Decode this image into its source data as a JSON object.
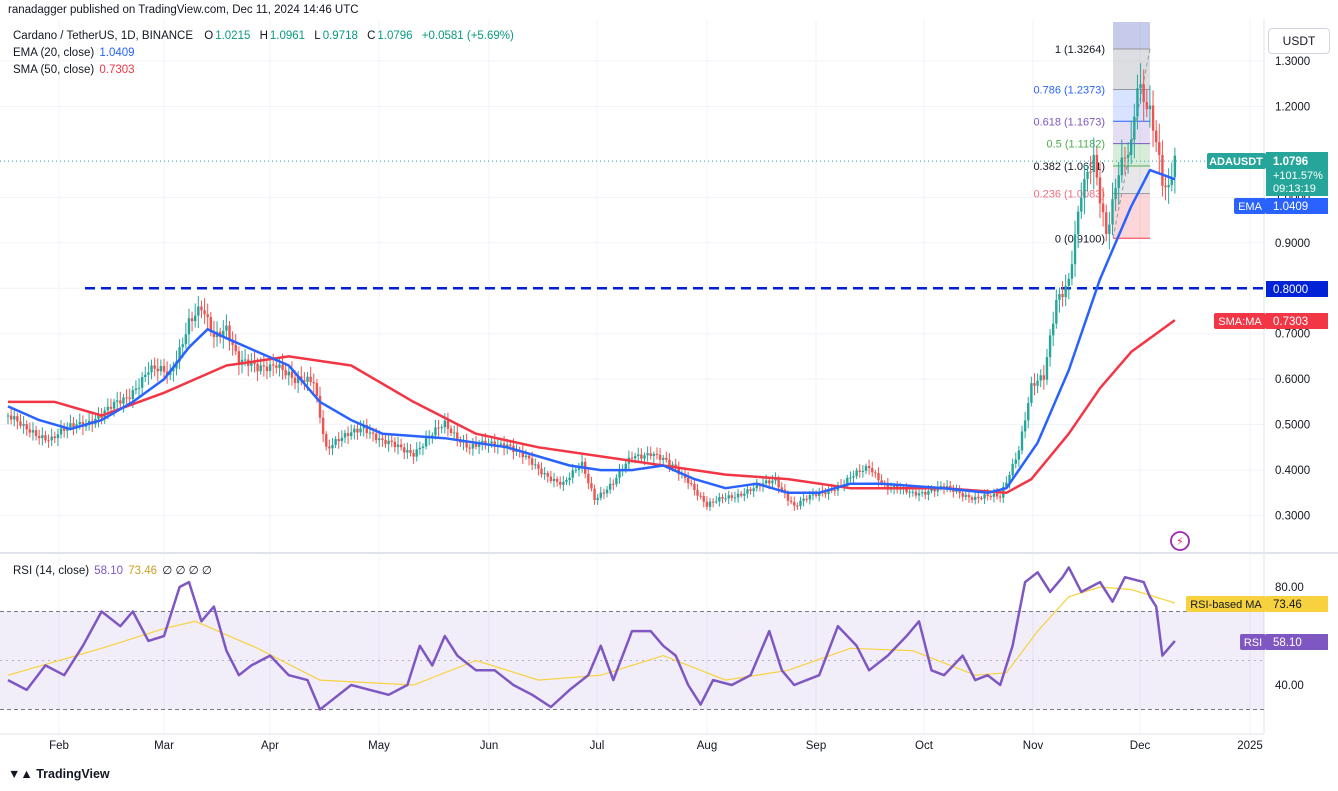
{
  "header": {
    "published": "ranadagger published on TradingView.com, Dec 11, 2024 14:46 UTC"
  },
  "legend": {
    "symbol": "Cardano / TetherUS, 1D, BINANCE",
    "o_label": "O",
    "o_value": "1.0215",
    "h_label": "H",
    "h_value": "1.0961",
    "l_label": "L",
    "l_value": "0.9718",
    "c_label": "C",
    "c_value": "1.0796",
    "change": "+0.0581 (+5.69%)",
    "ema_label": "EMA (20, close)",
    "ema_value": "1.0409",
    "sma_label": "SMA (50, close)",
    "sma_value": "0.7303"
  },
  "rsi_legend": {
    "label": "RSI (14, close)",
    "value1": "58.10",
    "value2": "73.46",
    "extra": "∅ ∅ ∅ ∅"
  },
  "currency_button": "USDT",
  "footer": {
    "logo_text": "TradingView"
  },
  "colors": {
    "up": "#26a69a",
    "down": "#ef5350",
    "ema": "#2962ff",
    "sma": "#f23645",
    "rsi": "#7e57c2",
    "rsi_ma": "#f7d23e",
    "support": "#0022d6"
  },
  "chart_data": [
    {
      "type": "candlestick",
      "title": "Cardano / TetherUS, 1D, BINANCE",
      "x_ticks": [
        "Feb",
        "Mar",
        "Apr",
        "May",
        "Jun",
        "Jul",
        "Aug",
        "Sep",
        "Oct",
        "Nov",
        "Dec",
        "2025"
      ],
      "y_ticks": [
        "0.3000",
        "0.4000",
        "0.5000",
        "0.6000",
        "0.7000",
        "0.8000",
        "0.9000",
        "1.0000",
        "1.2000",
        "1.3000"
      ],
      "ylim": [
        0.22,
        1.4
      ],
      "price_path": [
        [
          0,
          0.52
        ],
        [
          5,
          0.49
        ],
        [
          14,
          0.47
        ],
        [
          22,
          0.5
        ],
        [
          30,
          0.52
        ],
        [
          38,
          0.56
        ],
        [
          45,
          0.62
        ],
        [
          52,
          0.61
        ],
        [
          58,
          0.73
        ],
        [
          62,
          0.75
        ],
        [
          66,
          0.69
        ],
        [
          70,
          0.72
        ],
        [
          74,
          0.64
        ],
        [
          80,
          0.62
        ],
        [
          86,
          0.64
        ],
        [
          92,
          0.59
        ],
        [
          98,
          0.6
        ],
        [
          102,
          0.45
        ],
        [
          108,
          0.47
        ],
        [
          114,
          0.5
        ],
        [
          120,
          0.46
        ],
        [
          130,
          0.44
        ],
        [
          140,
          0.5
        ],
        [
          148,
          0.45
        ],
        [
          160,
          0.46
        ],
        [
          170,
          0.4
        ],
        [
          178,
          0.37
        ],
        [
          184,
          0.41
        ],
        [
          188,
          0.34
        ],
        [
          194,
          0.37
        ],
        [
          200,
          0.43
        ],
        [
          206,
          0.44
        ],
        [
          212,
          0.41
        ],
        [
          218,
          0.38
        ],
        [
          224,
          0.32
        ],
        [
          230,
          0.34
        ],
        [
          240,
          0.36
        ],
        [
          246,
          0.38
        ],
        [
          252,
          0.32
        ],
        [
          260,
          0.35
        ],
        [
          268,
          0.37
        ],
        [
          276,
          0.41
        ],
        [
          282,
          0.36
        ],
        [
          290,
          0.35
        ],
        [
          300,
          0.36
        ],
        [
          310,
          0.34
        ],
        [
          318,
          0.34
        ],
        [
          324,
          0.45
        ],
        [
          328,
          0.58
        ],
        [
          332,
          0.6
        ],
        [
          336,
          0.78
        ],
        [
          340,
          0.82
        ],
        [
          344,
          1.0
        ],
        [
          348,
          1.08
        ],
        [
          352,
          0.93
        ],
        [
          356,
          1.06
        ],
        [
          360,
          1.1
        ],
        [
          362,
          1.24
        ],
        [
          366,
          1.2
        ],
        [
          368,
          1.14
        ],
        [
          370,
          1.04
        ],
        [
          372,
          1.01
        ],
        [
          374,
          1.08
        ]
      ],
      "ema_path": [
        [
          0,
          0.54
        ],
        [
          10,
          0.51
        ],
        [
          20,
          0.49
        ],
        [
          30,
          0.51
        ],
        [
          40,
          0.55
        ],
        [
          50,
          0.6
        ],
        [
          58,
          0.67
        ],
        [
          64,
          0.71
        ],
        [
          70,
          0.69
        ],
        [
          80,
          0.66
        ],
        [
          90,
          0.63
        ],
        [
          100,
          0.55
        ],
        [
          110,
          0.51
        ],
        [
          120,
          0.48
        ],
        [
          140,
          0.47
        ],
        [
          160,
          0.45
        ],
        [
          180,
          0.41
        ],
        [
          190,
          0.4
        ],
        [
          200,
          0.4
        ],
        [
          210,
          0.41
        ],
        [
          220,
          0.38
        ],
        [
          230,
          0.36
        ],
        [
          240,
          0.37
        ],
        [
          250,
          0.35
        ],
        [
          260,
          0.35
        ],
        [
          270,
          0.37
        ],
        [
          280,
          0.37
        ],
        [
          300,
          0.36
        ],
        [
          314,
          0.35
        ],
        [
          320,
          0.36
        ],
        [
          330,
          0.46
        ],
        [
          340,
          0.62
        ],
        [
          350,
          0.82
        ],
        [
          360,
          0.98
        ],
        [
          366,
          1.06
        ],
        [
          374,
          1.04
        ]
      ],
      "sma_path": [
        [
          0,
          0.55
        ],
        [
          15,
          0.55
        ],
        [
          30,
          0.52
        ],
        [
          50,
          0.57
        ],
        [
          70,
          0.63
        ],
        [
          90,
          0.65
        ],
        [
          110,
          0.63
        ],
        [
          130,
          0.55
        ],
        [
          150,
          0.48
        ],
        [
          170,
          0.45
        ],
        [
          190,
          0.43
        ],
        [
          210,
          0.41
        ],
        [
          230,
          0.39
        ],
        [
          250,
          0.38
        ],
        [
          270,
          0.36
        ],
        [
          300,
          0.36
        ],
        [
          320,
          0.35
        ],
        [
          328,
          0.38
        ],
        [
          340,
          0.48
        ],
        [
          350,
          0.58
        ],
        [
          360,
          0.66
        ],
        [
          374,
          0.73
        ]
      ],
      "support_level": 0.8,
      "fib_levels": [
        {
          "label": "1 (1.3264)",
          "value": 1.3264
        },
        {
          "label": "0.786 (1.2373)",
          "value": 1.2373
        },
        {
          "label": "0.618 (1.1673)",
          "value": 1.1673
        },
        {
          "label": "0.5 (1.1182)",
          "value": 1.1182
        },
        {
          "label": "0.382 (1.0691)",
          "value": 1.0691
        },
        {
          "label": "0.236 (1.0083)",
          "value": 1.0083
        },
        {
          "label": "0 (0.9100)",
          "value": 0.91
        }
      ],
      "price_tags": {
        "symbol": "ADAUSDT",
        "last": "1.0796",
        "change_pct": "+101.57%",
        "countdown": "09:13:19",
        "ema_label": "EMA",
        "ema_value": "1.0409",
        "support_value": "0.8000",
        "sma_label": "SMA:MA",
        "sma_value": "0.7303"
      }
    },
    {
      "type": "line",
      "title": "RSI (14, close)",
      "y_ticks": [
        "40.00",
        "80.00"
      ],
      "ylim": [
        20,
        100
      ],
      "band": [
        30,
        70
      ],
      "rsi_path": [
        [
          0,
          42
        ],
        [
          6,
          38
        ],
        [
          12,
          48
        ],
        [
          18,
          44
        ],
        [
          24,
          56
        ],
        [
          30,
          70
        ],
        [
          36,
          64
        ],
        [
          40,
          70
        ],
        [
          45,
          58
        ],
        [
          50,
          60
        ],
        [
          55,
          80
        ],
        [
          58,
          82
        ],
        [
          62,
          66
        ],
        [
          66,
          72
        ],
        [
          70,
          54
        ],
        [
          74,
          44
        ],
        [
          78,
          48
        ],
        [
          84,
          52
        ],
        [
          90,
          44
        ],
        [
          96,
          42
        ],
        [
          100,
          30
        ],
        [
          104,
          34
        ],
        [
          110,
          40
        ],
        [
          116,
          38
        ],
        [
          122,
          36
        ],
        [
          128,
          40
        ],
        [
          132,
          56
        ],
        [
          136,
          48
        ],
        [
          140,
          60
        ],
        [
          144,
          52
        ],
        [
          150,
          46
        ],
        [
          156,
          46
        ],
        [
          162,
          40
        ],
        [
          168,
          36
        ],
        [
          174,
          31
        ],
        [
          180,
          38
        ],
        [
          186,
          44
        ],
        [
          190,
          56
        ],
        [
          194,
          42
        ],
        [
          200,
          62
        ],
        [
          206,
          62
        ],
        [
          210,
          56
        ],
        [
          214,
          52
        ],
        [
          218,
          40
        ],
        [
          222,
          32
        ],
        [
          226,
          42
        ],
        [
          232,
          40
        ],
        [
          238,
          44
        ],
        [
          244,
          62
        ],
        [
          248,
          46
        ],
        [
          252,
          40
        ],
        [
          256,
          42
        ],
        [
          260,
          44
        ],
        [
          266,
          64
        ],
        [
          272,
          56
        ],
        [
          276,
          46
        ],
        [
          282,
          52
        ],
        [
          288,
          60
        ],
        [
          292,
          66
        ],
        [
          296,
          46
        ],
        [
          300,
          44
        ],
        [
          306,
          52
        ],
        [
          310,
          42
        ],
        [
          314,
          44
        ],
        [
          318,
          40
        ],
        [
          322,
          56
        ],
        [
          326,
          82
        ],
        [
          330,
          86
        ],
        [
          334,
          78
        ],
        [
          338,
          84
        ],
        [
          340,
          88
        ],
        [
          344,
          78
        ],
        [
          350,
          82
        ],
        [
          354,
          74
        ],
        [
          358,
          84
        ],
        [
          364,
          82
        ],
        [
          366,
          76
        ],
        [
          368,
          72
        ],
        [
          370,
          52
        ],
        [
          374,
          58
        ]
      ],
      "rsi_ma_path": [
        [
          0,
          44
        ],
        [
          30,
          55
        ],
        [
          50,
          63
        ],
        [
          60,
          66
        ],
        [
          80,
          55
        ],
        [
          100,
          42
        ],
        [
          130,
          40
        ],
        [
          150,
          50
        ],
        [
          170,
          42
        ],
        [
          190,
          44
        ],
        [
          210,
          52
        ],
        [
          230,
          42
        ],
        [
          250,
          46
        ],
        [
          270,
          55
        ],
        [
          290,
          54
        ],
        [
          310,
          44
        ],
        [
          320,
          45
        ],
        [
          330,
          62
        ],
        [
          340,
          76
        ],
        [
          350,
          80
        ],
        [
          360,
          79
        ],
        [
          374,
          73.46
        ]
      ],
      "price_tags": {
        "ma_label": "RSI-based MA",
        "ma_value": "73.46",
        "rsi_label": "RSI",
        "rsi_value": "58.10"
      }
    }
  ]
}
